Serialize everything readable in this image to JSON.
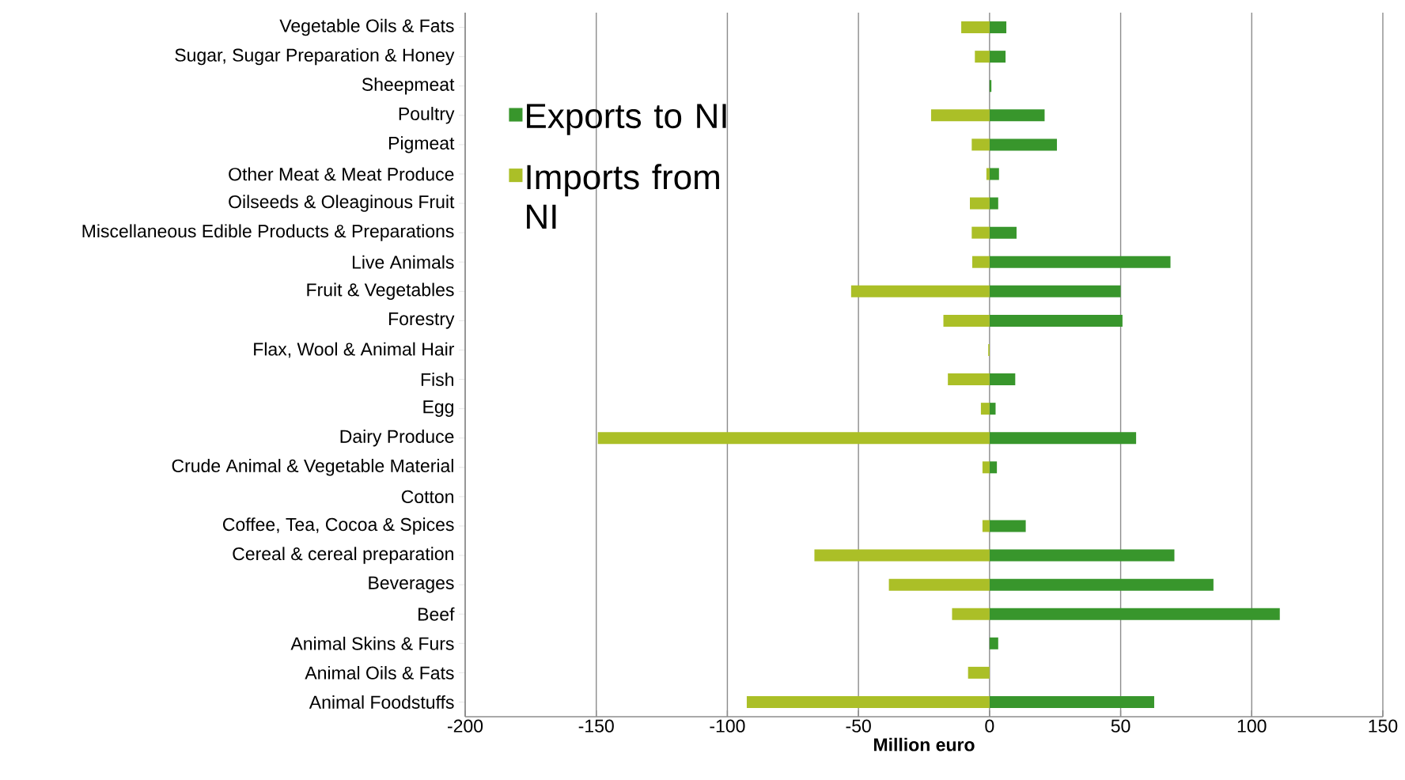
{
  "chart_data": {
    "type": "bar",
    "orientation": "horizontal",
    "xlabel": "Million euro",
    "categories": [
      "Vegetable Oils & Fats",
      "Sugar, Sugar Preparation & Honey",
      "Sheepmeat",
      "Poultry",
      "Pigmeat",
      "Other Meat & Meat Produce",
      "Oilseeds & Oleaginous Fruit",
      "Miscellaneous Edible Products & Preparations",
      "Live Animals",
      "Fruit & Vegetables",
      "Forestry",
      "Flax, Wool & Animal Hair",
      "Fish",
      "Egg",
      "Dairy Produce",
      "Crude Animal & Vegetable Material",
      "Cotton",
      "Coffee, Tea, Cocoa & Spices",
      "Cereal & cereal preparation",
      "Beverages",
      "Beef",
      "Animal Skins & Furs",
      "Animal Oils & Fats",
      "Animal Foodstuffs"
    ],
    "series": [
      {
        "name": "Exports to NI",
        "color": "#38962c",
        "values": [
          6.4,
          6.1,
          0.7,
          21,
          25.7,
          3.6,
          3.3,
          10.3,
          69,
          50,
          50.7,
          null,
          9.8,
          2.3,
          55.9,
          2.8,
          null,
          13.8,
          70.5,
          85.4,
          110.7,
          3.3,
          null,
          62.8
        ]
      },
      {
        "name": "Imports from NI",
        "color": "#abbf27",
        "values": [
          -10.8,
          -5.6,
          null,
          -22.3,
          -6.8,
          -1.2,
          -7.5,
          -6.8,
          -6.6,
          -52.8,
          -17.6,
          -0.5,
          -15.9,
          -3.3,
          -149.4,
          -2.7,
          null,
          -2.7,
          -66.8,
          -38.4,
          -14.3,
          null,
          -8.2,
          -92.6
        ]
      }
    ],
    "xlim": [
      -200,
      150
    ],
    "xticks": [
      -200,
      -150,
      -100,
      -50,
      0,
      50,
      100,
      150
    ],
    "grid": "x",
    "legend": "top left",
    "stacked": true
  }
}
